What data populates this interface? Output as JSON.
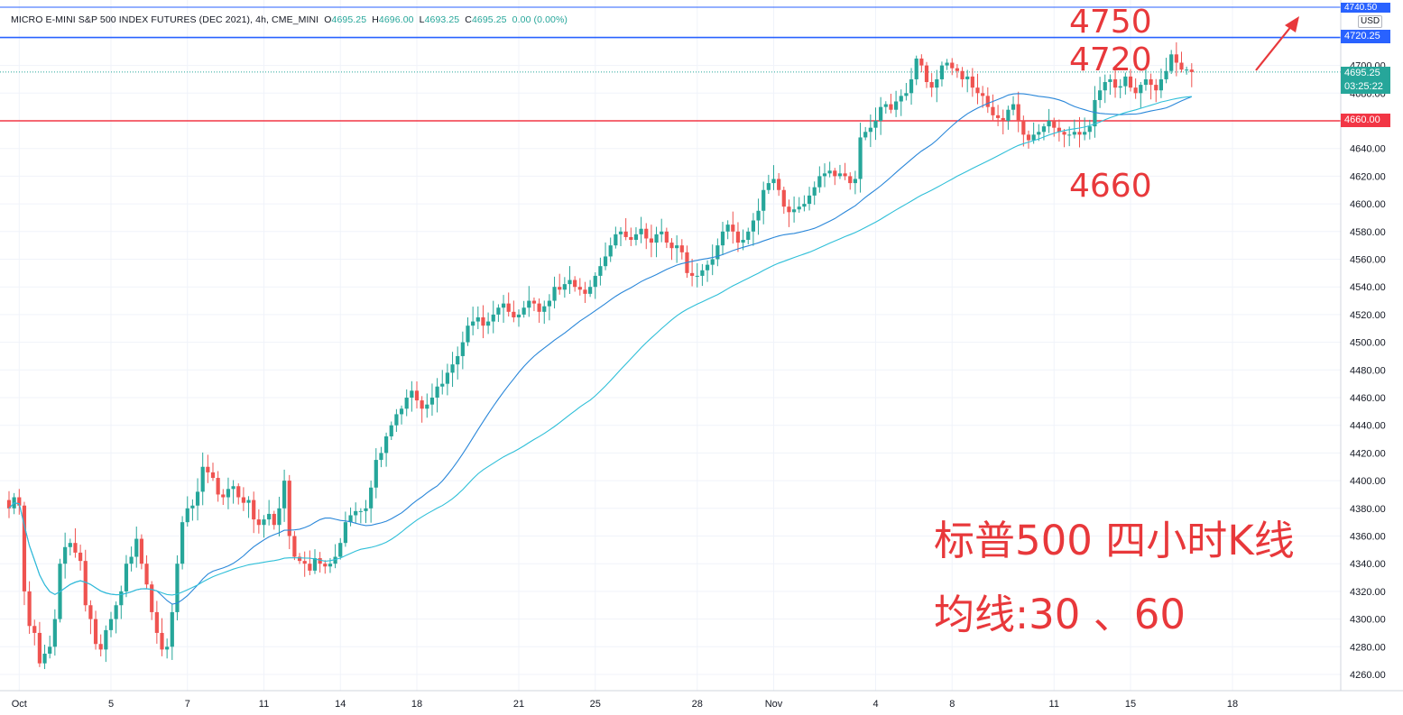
{
  "legend": {
    "symbol": "MICRO E-MINI S&P 500 INDEX FUTURES (DEC 2021), 4h, CME_MINI",
    "o_label": "O",
    "o": "4695.25",
    "h_label": "H",
    "h": "4696.00",
    "l_label": "L",
    "l": "4693.25",
    "c_label": "C",
    "c": "4695.25",
    "change": "0.00 (0.00%)"
  },
  "currency": "USD",
  "price_tags": {
    "top": "4740.50",
    "blue_line": "4720.25",
    "last": "4695.25",
    "countdown": "03:25:22",
    "red_line": "4660.00"
  },
  "annotations": {
    "level_4750": "4750",
    "level_4720": "4720",
    "level_4660": "4660",
    "title": "标普500 四小时K线",
    "ma": "均线:30 、60"
  },
  "colors": {
    "up": "#26a69a",
    "down": "#ef5350",
    "ma_fast": "#2a87d9",
    "ma_slow": "#2fbfd8",
    "blue_hline": "#2962ff",
    "red_hline": "#f23645",
    "annotation": "#e8383b",
    "grid": "#f0f3fa"
  },
  "chart_data": {
    "type": "candlestick",
    "title": "",
    "ylim": [
      4250,
      4745
    ],
    "yticks": [
      4260,
      4280,
      4300,
      4320,
      4340,
      4360,
      4380,
      4400,
      4420,
      4440,
      4460,
      4480,
      4500,
      4520,
      4540,
      4560,
      4580,
      4600,
      4620,
      4640,
      4660,
      4680,
      4700
    ],
    "xticks": [
      {
        "index": 2,
        "label": "Oct"
      },
      {
        "index": 20,
        "label": "5"
      },
      {
        "index": 35,
        "label": "7"
      },
      {
        "index": 50,
        "label": "11"
      },
      {
        "index": 65,
        "label": "14"
      },
      {
        "index": 80,
        "label": "18"
      },
      {
        "index": 100,
        "label": "21"
      },
      {
        "index": 115,
        "label": "25"
      },
      {
        "index": 135,
        "label": "28"
      },
      {
        "index": 150,
        "label": "Nov"
      },
      {
        "index": 170,
        "label": "4"
      },
      {
        "index": 185,
        "label": "8"
      },
      {
        "index": 205,
        "label": "11"
      },
      {
        "index": 220,
        "label": "15"
      },
      {
        "index": 240,
        "label": "18"
      }
    ],
    "horizontal_lines": [
      {
        "value": 4720.25,
        "color": "blue"
      },
      {
        "value": 4660.0,
        "color": "red"
      }
    ],
    "candles_close": [
      4380,
      4388,
      4382,
      4320,
      4295,
      4290,
      4268,
      4275,
      4280,
      4300,
      4340,
      4352,
      4355,
      4348,
      4342,
      4310,
      4300,
      4282,
      4278,
      4292,
      4300,
      4310,
      4320,
      4340,
      4345,
      4358,
      4340,
      4325,
      4305,
      4290,
      4278,
      4280,
      4305,
      4340,
      4370,
      4380,
      4382,
      4392,
      4410,
      4406,
      4402,
      4390,
      4388,
      4394,
      4396,
      4388,
      4384,
      4386,
      4372,
      4368,
      4372,
      4376,
      4368,
      4380,
      4400,
      4360,
      4345,
      4342,
      4340,
      4335,
      4344,
      4340,
      4338,
      4340,
      4345,
      4355,
      4370,
      4375,
      4378,
      4378,
      4380,
      4395,
      4415,
      4420,
      4432,
      4440,
      4448,
      4452,
      4460,
      4465,
      4458,
      4452,
      4455,
      4460,
      4468,
      4470,
      4478,
      4484,
      4490,
      4500,
      4512,
      4515,
      4518,
      4512,
      4515,
      4520,
      4525,
      4528,
      4522,
      4518,
      4520,
      4525,
      4530,
      4528,
      4522,
      4526,
      4530,
      4540,
      4538,
      4542,
      4545,
      4540,
      4538,
      4535,
      4540,
      4548,
      4555,
      4562,
      4570,
      4578,
      4580,
      4576,
      4574,
      4578,
      4582,
      4575,
      4572,
      4578,
      4580,
      4572,
      4568,
      4570,
      4565,
      4550,
      4548,
      4548,
      4552,
      4556,
      4560,
      4570,
      4580,
      4585,
      4580,
      4572,
      4574,
      4580,
      4588,
      4595,
      4610,
      4615,
      4618,
      4610,
      4598,
      4594,
      4596,
      4598,
      4600,
      4606,
      4612,
      4620,
      4622,
      4624,
      4620,
      4622,
      4620,
      4615,
      4618,
      4648,
      4652,
      4655,
      4660,
      4670,
      4672,
      4668,
      4674,
      4678,
      4680,
      4690,
      4705,
      4700,
      4688,
      4684,
      4690,
      4700,
      4702,
      4698,
      4696,
      4690,
      4692,
      4684,
      4680,
      4678,
      4670,
      4664,
      4662,
      4660,
      4668,
      4672,
      4660,
      4650,
      4646,
      4650,
      4652,
      4656,
      4660,
      4655,
      4652,
      4650,
      4650,
      4652,
      4650,
      4652,
      4656,
      4675,
      4682,
      4688,
      4690,
      4684,
      4685,
      4692,
      4684,
      4680,
      4686,
      4690,
      4686,
      4682,
      4690,
      4696,
      4708,
      4702,
      4697,
      4697,
      4695.25
    ],
    "ma30_label": "MA30",
    "ma60_label": "MA60"
  }
}
